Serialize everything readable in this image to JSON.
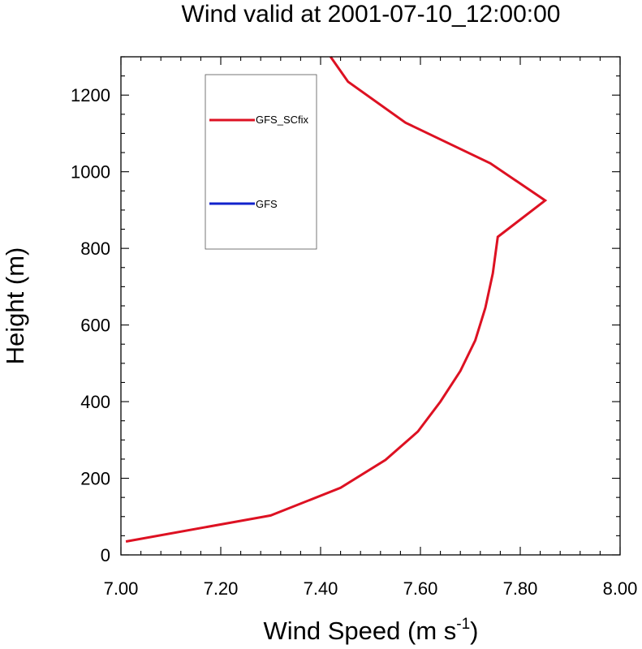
{
  "chart_data": {
    "type": "line",
    "title": "Wind valid at 2001-07-10_12:00:00",
    "xlabel": "Wind Speed (m s",
    "xlabel_superscript": "-1",
    "xlabel_suffix": ")",
    "ylabel": "Height (m)",
    "xlim": [
      7.0,
      8.0
    ],
    "ylim": [
      0,
      1300
    ],
    "x_ticks": [
      7.0,
      7.2,
      7.4,
      7.6,
      7.8,
      8.0
    ],
    "x_tick_labels": [
      "7.00",
      "7.20",
      "7.40",
      "7.60",
      "7.80",
      "8.00"
    ],
    "y_ticks": [
      0,
      200,
      400,
      600,
      800,
      1000,
      1200
    ],
    "y_tick_labels": [
      "0",
      "200",
      "400",
      "600",
      "800",
      "1000",
      "1200"
    ],
    "grid": false,
    "legend_position": "top-left",
    "series": [
      {
        "name": "GFS_SCfix",
        "color": "#dd1122",
        "x": [
          7.01,
          7.3,
          7.44,
          7.53,
          7.595,
          7.64,
          7.68,
          7.71,
          7.73,
          7.745,
          7.755,
          7.85,
          7.74,
          7.57,
          7.455,
          7.42
        ],
        "y": [
          35,
          103,
          175,
          248,
          322,
          400,
          480,
          560,
          645,
          735,
          830,
          925,
          1022,
          1128,
          1235,
          1300
        ]
      },
      {
        "name": "GFS",
        "color": "#1122cc",
        "x": [],
        "y": []
      }
    ]
  }
}
